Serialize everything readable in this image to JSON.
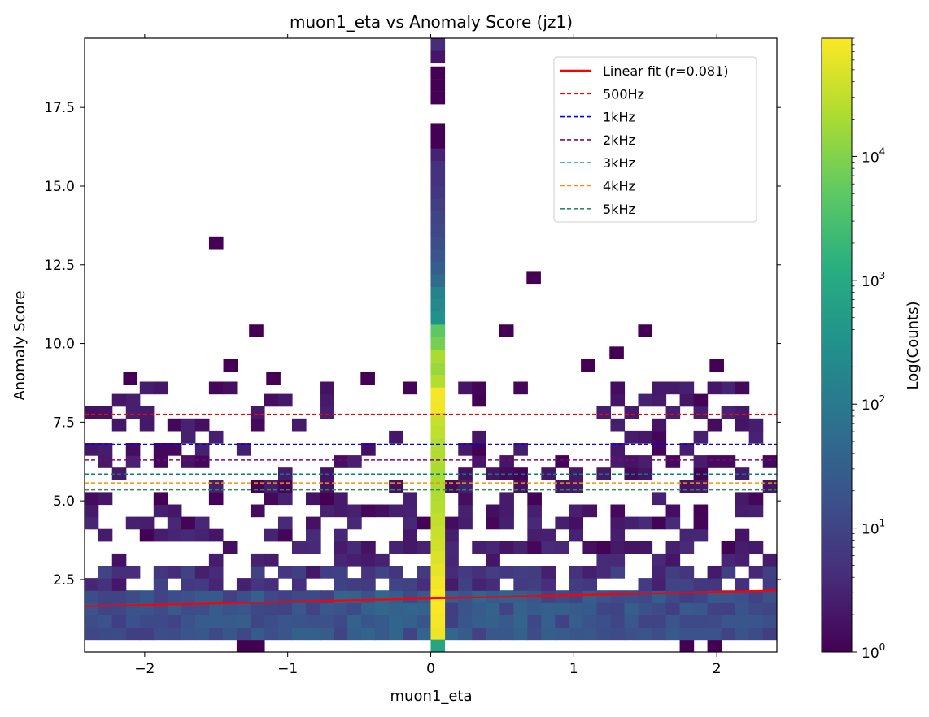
{
  "chart_data": {
    "type": "heatmap",
    "title": "muon1_eta vs Anomaly Score (jz1)",
    "xlabel": "muon1_eta",
    "ylabel": "Anomaly Score",
    "xlim": [
      -2.42,
      2.42
    ],
    "ylim": [
      0.2,
      19.7
    ],
    "x_ticks": [
      -2,
      -1,
      0,
      1,
      2
    ],
    "x_tick_labels": [
      "−2",
      "−1",
      "0",
      "1",
      "2"
    ],
    "y_ticks": [
      2.5,
      5.0,
      7.5,
      10.0,
      12.5,
      15.0,
      17.5
    ],
    "y_tick_labels": [
      "2.5",
      "5.0",
      "7.5",
      "10.0",
      "12.5",
      "15.0",
      "17.5"
    ],
    "colorbar": {
      "label": "Log(Counts)",
      "scale": "log",
      "min": 1,
      "max": 90000,
      "colormap": "viridis",
      "ticks": [
        1,
        10,
        100,
        1000,
        10000
      ],
      "tick_bases": [
        "10",
        "10",
        "10",
        "10",
        "10"
      ],
      "tick_exponents": [
        "0",
        "1",
        "2",
        "3",
        "4"
      ]
    },
    "bins": {
      "x_count": 50,
      "y_count": 50,
      "x_min": -2.42,
      "x_max": 2.42,
      "y_min": 0.2,
      "y_max": 19.7
    },
    "fit": {
      "name": "Linear fit (r=0.081)",
      "color": "#ff0000",
      "x": [
        -2.42,
        2.42
      ],
      "y": [
        1.65,
        2.15
      ]
    },
    "thresholds": [
      {
        "name": "500Hz",
        "value": 7.75,
        "color": "#ff0000"
      },
      {
        "name": "1kHz",
        "value": 6.8,
        "color": "#0000ff"
      },
      {
        "name": "2kHz",
        "value": 6.3,
        "color": "#800080"
      },
      {
        "name": "3kHz",
        "value": 5.85,
        "color": "#008080"
      },
      {
        "name": "4kHz",
        "value": 5.57,
        "color": "#ff8c00"
      },
      {
        "name": "5kHz",
        "value": 5.35,
        "color": "#2e8b57"
      }
    ],
    "legend_position": "top-right",
    "grid": false,
    "zero_column": {
      "x": 0.05,
      "cells": [
        {
          "y": 0.4,
          "c": 800
        },
        {
          "y": 0.8,
          "c": 70000
        },
        {
          "y": 1.2,
          "c": 80000
        },
        {
          "y": 1.6,
          "c": 85000
        },
        {
          "y": 2.0,
          "c": 85000
        },
        {
          "y": 2.4,
          "c": 75000
        },
        {
          "y": 2.8,
          "c": 60000
        },
        {
          "y": 3.2,
          "c": 50000
        },
        {
          "y": 3.6,
          "c": 40000
        },
        {
          "y": 4.0,
          "c": 35000
        },
        {
          "y": 4.4,
          "c": 30000
        },
        {
          "y": 4.8,
          "c": 25000
        },
        {
          "y": 5.2,
          "c": 22000
        },
        {
          "y": 5.6,
          "c": 20000
        },
        {
          "y": 6.0,
          "c": 20000
        },
        {
          "y": 6.4,
          "c": 22000
        },
        {
          "y": 6.8,
          "c": 25000
        },
        {
          "y": 7.2,
          "c": 30000
        },
        {
          "y": 7.6,
          "c": 35000
        },
        {
          "y": 8.0,
          "c": 75000
        },
        {
          "y": 8.4,
          "c": 80000
        },
        {
          "y": 8.8,
          "c": 25000
        },
        {
          "y": 9.2,
          "c": 15000
        },
        {
          "y": 9.6,
          "c": 20000
        },
        {
          "y": 10.0,
          "c": 8000
        },
        {
          "y": 10.4,
          "c": 5000
        },
        {
          "y": 10.8,
          "c": 300
        },
        {
          "y": 11.2,
          "c": 200
        },
        {
          "y": 11.6,
          "c": 150
        },
        {
          "y": 12.0,
          "c": 50
        },
        {
          "y": 12.4,
          "c": 30
        },
        {
          "y": 12.8,
          "c": 20
        },
        {
          "y": 13.2,
          "c": 15
        },
        {
          "y": 13.6,
          "c": 12
        },
        {
          "y": 14.0,
          "c": 10
        },
        {
          "y": 14.4,
          "c": 8
        },
        {
          "y": 14.8,
          "c": 6
        },
        {
          "y": 15.2,
          "c": 5
        },
        {
          "y": 15.6,
          "c": 5
        },
        {
          "y": 16.0,
          "c": 3
        },
        {
          "y": 16.4,
          "c": 1
        },
        {
          "y": 16.8,
          "c": 1
        },
        {
          "y": 17.8,
          "c": 1
        },
        {
          "y": 18.2,
          "c": 1
        },
        {
          "y": 18.6,
          "c": 1
        },
        {
          "y": 19.1,
          "c": 2
        },
        {
          "y": 19.5,
          "c": 4
        }
      ]
    },
    "isolated_cells": [
      {
        "x": -1.5,
        "y": 13.2,
        "c": 1
      },
      {
        "x": 0.72,
        "y": 12.1,
        "c": 1
      },
      {
        "x": -1.22,
        "y": 10.4,
        "c": 1
      },
      {
        "x": 0.53,
        "y": 10.4,
        "c": 1
      },
      {
        "x": 1.5,
        "y": 10.4,
        "c": 1
      },
      {
        "x": 1.3,
        "y": 9.7,
        "c": 1
      },
      {
        "x": -1.4,
        "y": 9.3,
        "c": 1
      },
      {
        "x": 1.1,
        "y": 9.3,
        "c": 1
      },
      {
        "x": 2.0,
        "y": 9.3,
        "c": 1
      },
      {
        "x": -2.1,
        "y": 8.9,
        "c": 1
      },
      {
        "x": -1.1,
        "y": 8.9,
        "c": 1
      },
      {
        "x": -0.44,
        "y": 8.9,
        "c": 1
      }
    ]
  }
}
